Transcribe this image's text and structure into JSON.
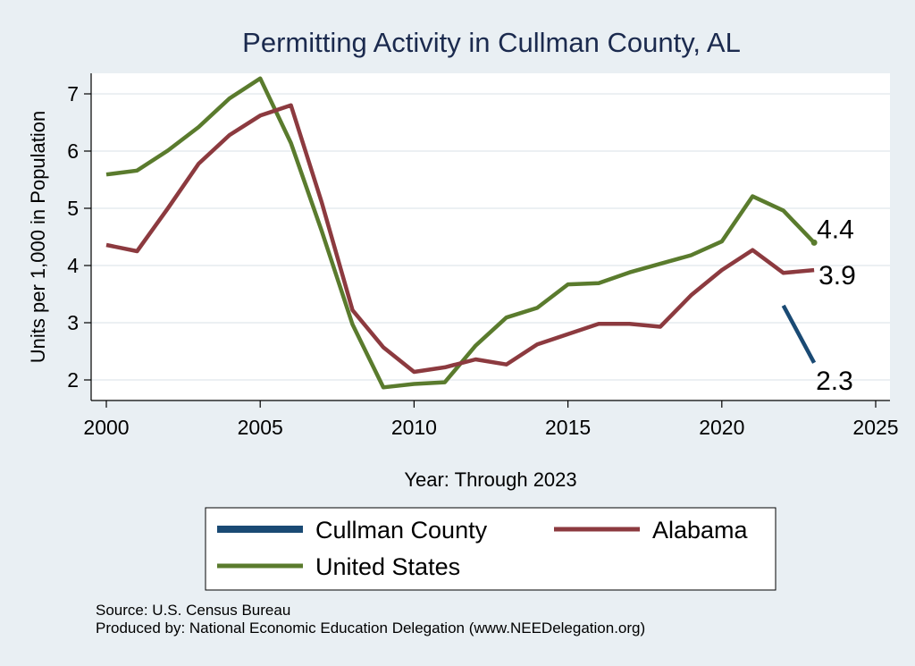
{
  "chart_data": {
    "type": "line",
    "title": "Permitting Activity in Cullman County, AL",
    "xlabel": "Year: Through 2023",
    "ylabel": "Units per 1,000 in Population",
    "xlim": [
      2000,
      2025
    ],
    "ylim": [
      1.7,
      7.5
    ],
    "x_ticks": [
      2000,
      2005,
      2010,
      2015,
      2020,
      2025
    ],
    "y_ticks": [
      2,
      3,
      4,
      5,
      6,
      7
    ],
    "grid": true,
    "legend_position": "bottom",
    "series": [
      {
        "name": "Cullman County",
        "color": "#1a4a74",
        "points": [
          [
            2022,
            3.3
          ],
          [
            2023,
            2.3
          ]
        ],
        "end_label": "2.3"
      },
      {
        "name": "Alabama",
        "color": "#8c3a3f",
        "points": [
          [
            2000,
            4.36
          ],
          [
            2001,
            4.25
          ],
          [
            2002,
            5.0
          ],
          [
            2003,
            5.78
          ],
          [
            2004,
            6.28
          ],
          [
            2005,
            6.62
          ],
          [
            2006,
            6.8
          ],
          [
            2007,
            5.1
          ],
          [
            2008,
            3.22
          ],
          [
            2009,
            2.57
          ],
          [
            2010,
            2.14
          ],
          [
            2011,
            2.22
          ],
          [
            2012,
            2.36
          ],
          [
            2013,
            2.27
          ],
          [
            2014,
            2.62
          ],
          [
            2015,
            2.8
          ],
          [
            2016,
            2.98
          ],
          [
            2017,
            2.98
          ],
          [
            2018,
            2.93
          ],
          [
            2019,
            3.48
          ],
          [
            2020,
            3.92
          ],
          [
            2021,
            4.27
          ],
          [
            2022,
            3.87
          ],
          [
            2023,
            3.92
          ]
        ],
        "end_label": "3.9"
      },
      {
        "name": "United States",
        "color": "#5a7b2d",
        "points": [
          [
            2000,
            5.59
          ],
          [
            2001,
            5.66
          ],
          [
            2002,
            6.01
          ],
          [
            2003,
            6.42
          ],
          [
            2004,
            6.92
          ],
          [
            2005,
            7.27
          ],
          [
            2006,
            6.14
          ],
          [
            2007,
            4.6
          ],
          [
            2008,
            2.97
          ],
          [
            2009,
            1.87
          ],
          [
            2010,
            1.93
          ],
          [
            2011,
            1.96
          ],
          [
            2012,
            2.6
          ],
          [
            2013,
            3.09
          ],
          [
            2014,
            3.26
          ],
          [
            2015,
            3.67
          ],
          [
            2016,
            3.69
          ],
          [
            2017,
            3.88
          ],
          [
            2018,
            4.03
          ],
          [
            2019,
            4.18
          ],
          [
            2020,
            4.42
          ],
          [
            2021,
            5.21
          ],
          [
            2022,
            4.96
          ],
          [
            2023,
            4.4
          ]
        ],
        "end_label": "4.4"
      }
    ],
    "legend_order": [
      "Cullman County",
      "Alabama",
      "United States"
    ]
  },
  "notes": {
    "source": "Source: U.S. Census Bureau",
    "produced_by": "Produced by: National Economic Education Delegation (www.NEEDelegation.org)"
  }
}
